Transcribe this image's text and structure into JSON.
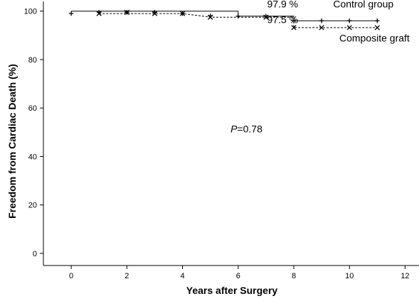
{
  "chart_data": {
    "type": "line",
    "chart_kind": "kaplan-meier step survival curve",
    "xlabel": "Years after Surgery",
    "ylabel": "Freedom from Cardiac Death (%)",
    "xlim": [
      -1,
      12.5
    ],
    "ylim": [
      -5,
      104
    ],
    "xticks": [
      0,
      2,
      4,
      6,
      8,
      10,
      12
    ],
    "yticks": [
      0,
      20,
      40,
      60,
      80,
      100
    ],
    "grid": false,
    "series": [
      {
        "name": "Control group",
        "line_style": "solid",
        "marker": "+",
        "color": "#000000",
        "steps": [
          [
            0,
            100
          ],
          [
            6,
            100
          ],
          [
            6,
            97.9
          ],
          [
            8,
            97.9
          ],
          [
            8,
            96
          ],
          [
            11,
            96
          ]
        ],
        "censor_marks": [
          [
            0,
            99
          ],
          [
            1,
            99.5
          ],
          [
            2,
            99.5
          ],
          [
            3,
            99.5
          ],
          [
            4,
            99
          ],
          [
            5,
            98
          ],
          [
            6,
            97.9
          ],
          [
            7,
            97.9
          ],
          [
            8,
            96
          ],
          [
            9,
            96
          ],
          [
            10,
            96
          ],
          [
            11,
            96
          ]
        ]
      },
      {
        "name": "Composite graft",
        "line_style": "dashed",
        "marker": "x",
        "color": "#000000",
        "steps": [
          [
            1,
            99
          ],
          [
            4,
            99
          ],
          [
            5,
            97.5
          ],
          [
            8,
            97.5
          ],
          [
            8,
            93.2
          ],
          [
            11,
            93.2
          ]
        ],
        "censor_marks": [
          [
            1,
            99
          ],
          [
            2,
            99.5
          ],
          [
            3,
            99
          ],
          [
            4,
            99
          ],
          [
            5,
            97.5
          ],
          [
            7,
            97.5
          ],
          [
            8,
            93.2
          ],
          [
            9,
            93.2
          ],
          [
            10,
            93.2
          ],
          [
            11,
            93.2
          ]
        ]
      }
    ],
    "annotations": [
      {
        "text": "97.9 %",
        "x": 7.6,
        "y": 101.5
      },
      {
        "text": "97.5 %",
        "x": 7.6,
        "y": 95
      },
      {
        "text": "Control group",
        "x": 10.5,
        "y": 101.5
      },
      {
        "text": "Composite graft",
        "x": 10.9,
        "y": 87.5
      }
    ],
    "p_value": {
      "prefix": "P",
      "rest": "=0.78",
      "x": 6.3,
      "y": 50
    }
  }
}
